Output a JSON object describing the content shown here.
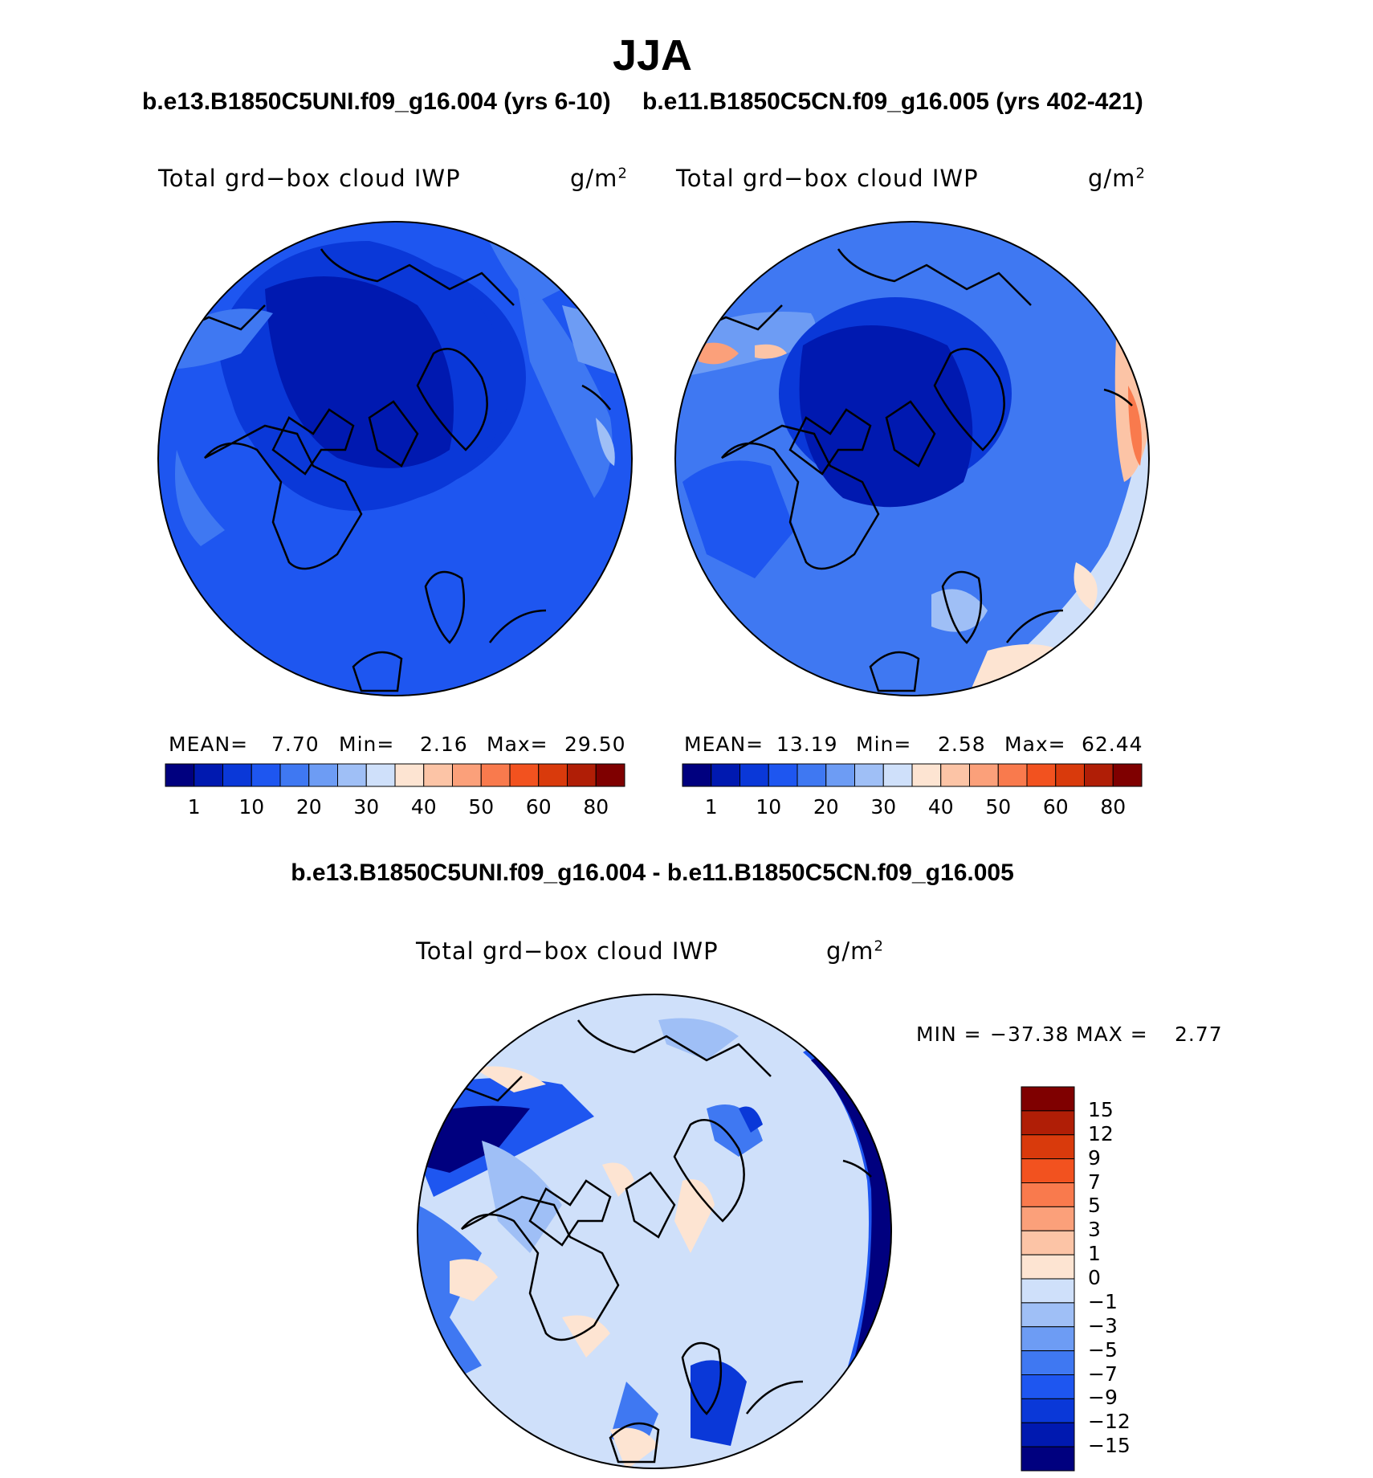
{
  "title": "JJA",
  "panels": [
    {
      "id": "left",
      "run_title": "b.e13.B1850C5UNI.f09_g16.004 (yrs 6-10)",
      "variable": "Total grd−box cloud IWP",
      "units": "g/m",
      "units_sup": "2",
      "stats": {
        "mean_label": "MEAN=",
        "mean": "7.70",
        "min_label": "Min=",
        "min": "2.16",
        "max_label": "Max=",
        "max": "29.50"
      },
      "colorbar_ticks": [
        "1",
        "10",
        "20",
        "30",
        "40",
        "50",
        "60",
        "80"
      ]
    },
    {
      "id": "right",
      "run_title": "b.e11.B1850C5CN.f09_g16.005 (yrs 402-421)",
      "variable": "Total grd−box cloud IWP",
      "units": "g/m",
      "units_sup": "2",
      "stats": {
        "mean_label": "MEAN=",
        "mean": "13.19",
        "min_label": "Min=",
        "min": "2.58",
        "max_label": "Max=",
        "max": "62.44"
      },
      "colorbar_ticks": [
        "1",
        "10",
        "20",
        "30",
        "40",
        "50",
        "60",
        "80"
      ]
    }
  ],
  "difference": {
    "title": "b.e13.B1850C5UNI.f09_g16.004 - b.e11.B1850C5CN.f09_g16.005",
    "variable": "Total grd−box cloud IWP",
    "units": "g/m",
    "units_sup": "2",
    "min_label": "MIN =",
    "min": "−37.38",
    "max_label": "MAX =",
    "max": "2.77",
    "colorbar_ticks": [
      "15",
      "12",
      "9",
      "7",
      "5",
      "3",
      "1",
      "0",
      "−1",
      "−3",
      "−5",
      "−7",
      "−9",
      "−12",
      "−15"
    ]
  },
  "colors": {
    "abs_scale": [
      "#00007f",
      "#0019b0",
      "#0a38d8",
      "#1e56f0",
      "#3f78f2",
      "#6d9cf4",
      "#9fbff6",
      "#cfe0fa",
      "#fde4d2",
      "#fcc4a6",
      "#fba07a",
      "#f97a4d",
      "#f2521f",
      "#d93a0c",
      "#b01e06",
      "#7f0000"
    ],
    "diff_scale": [
      "#7f0000",
      "#b01e06",
      "#d93a0c",
      "#f2521f",
      "#f97a4d",
      "#fba07a",
      "#fcc4a6",
      "#fde4d2",
      "#cfe0fa",
      "#9fbff6",
      "#6d9cf4",
      "#3f78f2",
      "#1e56f0",
      "#0a38d8",
      "#0019b0",
      "#00007f"
    ]
  }
}
